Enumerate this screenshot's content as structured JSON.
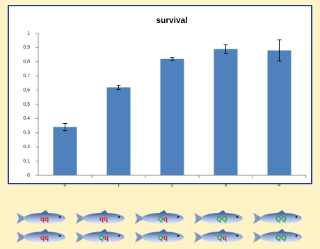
{
  "chart_data": {
    "type": "bar",
    "title": "survival",
    "categories": [
      "0",
      "1",
      "2",
      "3",
      "4"
    ],
    "values": [
      0.34,
      0.62,
      0.82,
      0.89,
      0.88
    ],
    "errors": [
      0.025,
      0.015,
      0.01,
      0.03,
      0.075
    ],
    "color": "#4f81bd",
    "ylim": [
      0,
      1
    ],
    "yticks": [
      0,
      {
        "value": 0.1,
        "label": "0,1"
      },
      {
        "value": 0.2,
        "label": "0,2"
      },
      {
        "value": 0.3,
        "label": "0,3"
      },
      {
        "value": 0.4,
        "label": "0,4"
      },
      {
        "value": 0.5,
        "label": "0,5"
      },
      {
        "value": 0.6,
        "label": "0,6"
      },
      {
        "value": 0.7,
        "label": "0,7"
      },
      {
        "value": 0.8,
        "label": "0,8"
      },
      {
        "value": 0.9,
        "label": "0,9"
      },
      1
    ]
  },
  "fish_labels": [
    [
      "qq",
      "qq",
      "Qq",
      "QQ",
      "QQ"
    ],
    [
      "qq",
      "Qq",
      "Qq",
      "Qq",
      "QQ"
    ]
  ]
}
